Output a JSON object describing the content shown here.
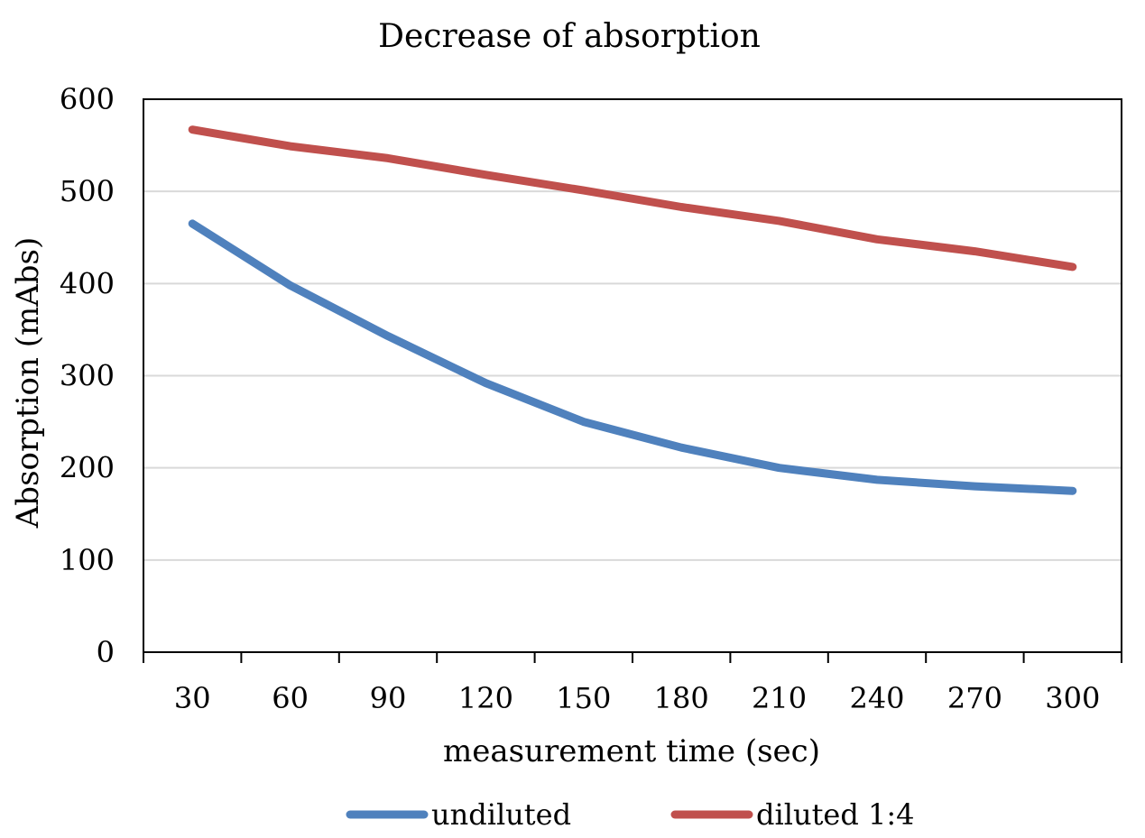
{
  "chart_data": {
    "type": "line",
    "title": "Decrease of absorption",
    "xlabel": "measurement time (sec)",
    "ylabel": "Absorption (mAbs)",
    "categories": [
      "30",
      "60",
      "90",
      "120",
      "150",
      "180",
      "210",
      "240",
      "270",
      "300"
    ],
    "ylim": [
      0,
      600
    ],
    "yticks": [
      "0",
      "100",
      "200",
      "300",
      "400",
      "500",
      "600"
    ],
    "grid": true,
    "legend_position": "bottom",
    "series": [
      {
        "name": "undiluted",
        "color": "#4F81BD",
        "values": [
          465,
          398,
          343,
          292,
          250,
          222,
          200,
          187,
          180,
          175
        ]
      },
      {
        "name": "diluted 1:4",
        "color": "#C0504D",
        "values": [
          567,
          549,
          536,
          518,
          501,
          483,
          468,
          448,
          435,
          418
        ]
      }
    ]
  }
}
